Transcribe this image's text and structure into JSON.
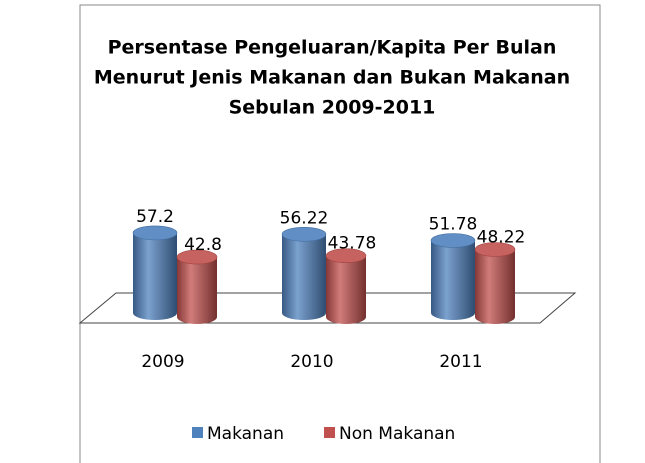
{
  "chart_data": {
    "type": "bar3d-cylinder",
    "title": [
      "Persentase Pengeluaran/Kapita Per Bulan",
      "Menurut Jenis Makanan dan Bukan  Makanan",
      "Sebulan 2009-2011"
    ],
    "categories": [
      "2009",
      "2010",
      "2011"
    ],
    "series": [
      {
        "name": "Makanan",
        "color": "#4f81bd",
        "values": [
          57.2,
          56.22,
          51.78
        ]
      },
      {
        "name": "Non Makanan",
        "color": "#c0504d",
        "values": [
          42.8,
          43.78,
          48.22
        ]
      }
    ],
    "legend": "bottom"
  }
}
